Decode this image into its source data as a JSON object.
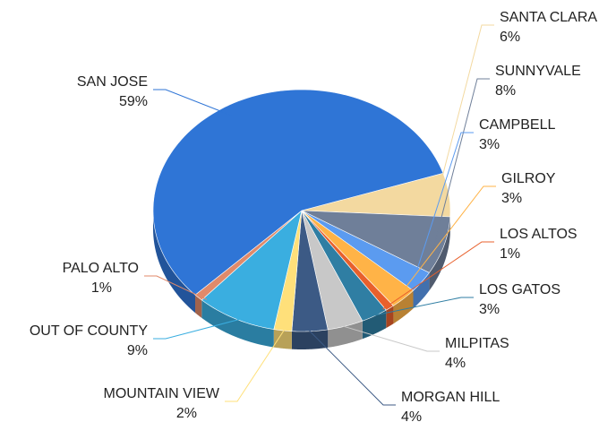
{
  "chart_data": {
    "type": "pie",
    "categories": [
      "SANTA CLARA",
      "SUNNYVALE",
      "CAMPBELL",
      "GILROY",
      "LOS ALTOS",
      "LOS GATOS",
      "MILPITAS",
      "MORGAN HILL",
      "MOUNTAIN VIEW",
      "OUT OF COUNTY",
      "PALO ALTO",
      "SAN JOSE"
    ],
    "values": [
      6,
      8,
      3,
      3,
      1,
      3,
      4,
      4,
      2,
      9,
      1,
      59
    ],
    "value_labels": [
      "6%",
      "8%",
      "3%",
      "3%",
      "1%",
      "3%",
      "4%",
      "4%",
      "2%",
      "9%",
      "1%",
      "59%"
    ],
    "colors": [
      "#f3d9a0",
      "#6f7f99",
      "#5b9bf0",
      "#ffb347",
      "#e8602c",
      "#2f7ea3",
      "#c8c8c8",
      "#3c5a85",
      "#ffe07a",
      "#3aaee0",
      "#e08a6a",
      "#2f75d6"
    ]
  }
}
